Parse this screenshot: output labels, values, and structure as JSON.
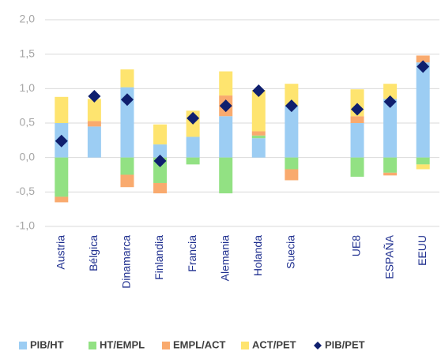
{
  "chart_data": {
    "type": "bar",
    "stacked": true,
    "categories": [
      "Austria",
      "Bélgica",
      "Dinamarca",
      "Finlandia",
      "Francia",
      "Alemania",
      "Holanda",
      "Suecia",
      null,
      "UE8",
      "ESPAÑA",
      "EEUU"
    ],
    "series": [
      {
        "name": "PIB/HT",
        "color": "#9ccdf3",
        "values": [
          0.5,
          0.45,
          1.02,
          0.19,
          0.3,
          0.6,
          0.28,
          0.75,
          null,
          0.5,
          0.85,
          1.38
        ]
      },
      {
        "name": "HT/EMPL",
        "color": "#92e183",
        "values": [
          -0.57,
          0,
          -0.25,
          -0.37,
          -0.1,
          -0.52,
          0.04,
          -0.17,
          null,
          -0.28,
          -0.22,
          -0.1
        ]
      },
      {
        "name": "EMPL/ACT",
        "color": "#f9aa6e",
        "values": [
          -0.08,
          0.08,
          -0.18,
          -0.15,
          0,
          0.3,
          0.06,
          -0.16,
          null,
          0.1,
          -0.04,
          0.1
        ]
      },
      {
        "name": "ACT/PET",
        "color": "#fee46f",
        "values": [
          0.38,
          0.32,
          0.26,
          0.29,
          0.38,
          0.35,
          0.6,
          0.32,
          null,
          0.39,
          0.22,
          -0.07
        ]
      },
      {
        "name": "PIB/PET",
        "color": "#0f1f6e",
        "type": "scatter",
        "values": [
          0.24,
          0.89,
          0.84,
          -0.05,
          0.57,
          0.75,
          0.97,
          0.75,
          null,
          0.7,
          0.81,
          1.32
        ]
      }
    ],
    "ylim": [
      -1,
      2
    ],
    "yticks": [
      {
        "value": -1,
        "label": "-1,0"
      },
      {
        "value": -0.5,
        "label": "-0,5"
      },
      {
        "value": 0,
        "label": "0,0"
      },
      {
        "value": 0.5,
        "label": "0,5"
      },
      {
        "value": 1,
        "label": "1,0"
      },
      {
        "value": 1.5,
        "label": "1,5"
      },
      {
        "value": 2,
        "label": "2,0"
      }
    ],
    "grid": true,
    "legend": "bottom"
  }
}
